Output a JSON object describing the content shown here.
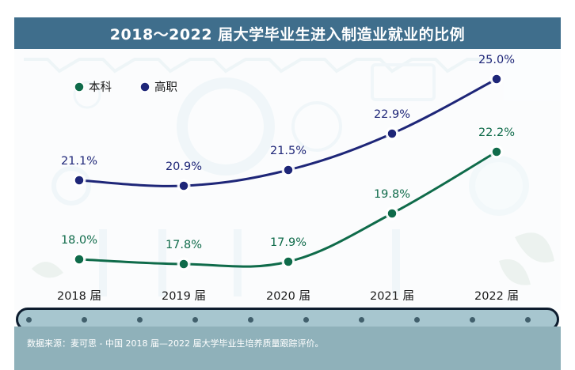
{
  "title": "2018～2022 届大学毕业生进入制造业就业的比例",
  "source_note": "数据来源：麦可思 - 中国 2018 届—2022 届大学毕业生培养质量跟踪评价。",
  "colors": {
    "title_bg": "#3f6e8c",
    "benke": "#0f6b4a",
    "gaozhi": "#1e2678",
    "footer_bg": "#8fb1ba"
  },
  "chart_data": {
    "type": "line",
    "title": "2018～2022 届大学毕业生进入制造业就业的比例",
    "categories": [
      "2018 届",
      "2019 届",
      "2020 届",
      "2021 届",
      "2022 届"
    ],
    "series": [
      {
        "name": "本科",
        "values": [
          18.0,
          17.8,
          17.9,
          19.8,
          22.2
        ],
        "labels": [
          "18.0%",
          "17.8%",
          "17.9%",
          "19.8%",
          "22.2%"
        ],
        "color": "#0f6b4a"
      },
      {
        "name": "高职",
        "values": [
          21.1,
          20.9,
          21.5,
          22.9,
          25.0
        ],
        "labels": [
          "21.1%",
          "20.9%",
          "21.5%",
          "22.9%",
          "25.0%"
        ],
        "color": "#1e2678"
      }
    ],
    "unit": "%",
    "grid": false,
    "legend_position": "top-left"
  }
}
